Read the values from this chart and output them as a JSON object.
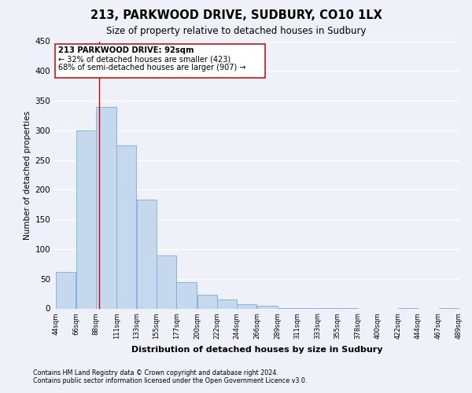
{
  "title": "213, PARKWOOD DRIVE, SUDBURY, CO10 1LX",
  "subtitle": "Size of property relative to detached houses in Sudbury",
  "xlabel": "Distribution of detached houses by size in Sudbury",
  "ylabel": "Number of detached properties",
  "bar_edges": [
    44,
    66,
    88,
    111,
    133,
    155,
    177,
    200,
    222,
    244,
    266,
    289,
    311,
    333,
    355,
    378,
    400,
    422,
    444,
    467,
    489
  ],
  "bar_heights": [
    62,
    300,
    340,
    275,
    183,
    90,
    45,
    23,
    15,
    7,
    4,
    1,
    1,
    1,
    1,
    0,
    0,
    1,
    0,
    1
  ],
  "tick_labels": [
    "44sqm",
    "66sqm",
    "88sqm",
    "111sqm",
    "133sqm",
    "155sqm",
    "177sqm",
    "200sqm",
    "222sqm",
    "244sqm",
    "266sqm",
    "289sqm",
    "311sqm",
    "333sqm",
    "355sqm",
    "378sqm",
    "400sqm",
    "422sqm",
    "444sqm",
    "467sqm",
    "489sqm"
  ],
  "bar_color": "#c5d8ed",
  "bar_edgecolor": "#7aaed4",
  "vline_x": 92,
  "vline_color": "#cc0000",
  "annotation_lines": [
    "213 PARKWOOD DRIVE: 92sqm",
    "← 32% of detached houses are smaller (423)",
    "68% of semi-detached houses are larger (907) →"
  ],
  "ylim": [
    0,
    450
  ],
  "yticks": [
    0,
    50,
    100,
    150,
    200,
    250,
    300,
    350,
    400,
    450
  ],
  "footnote1": "Contains HM Land Registry data © Crown copyright and database right 2024.",
  "footnote2": "Contains public sector information licensed under the Open Government Licence v3.0.",
  "bg_color": "#eef2f8",
  "grid_color": "#ffffff"
}
